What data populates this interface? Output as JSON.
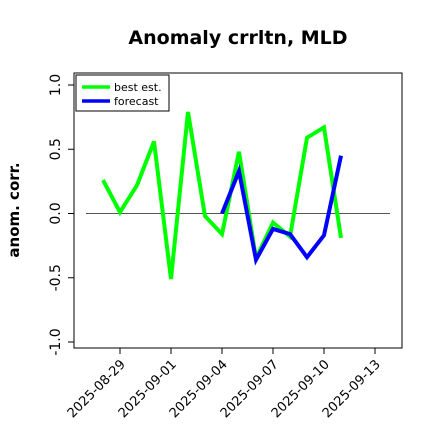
{
  "chart_data": {
    "type": "line",
    "title": "Anomaly crrltn, MLD",
    "ylabel": "anom. corr.",
    "xlabel": "",
    "ylim": [
      -1.0,
      1.0
    ],
    "yticks": [
      -1.0,
      -0.5,
      0.0,
      0.5,
      1.0
    ],
    "ytick_labels": [
      "-1.0",
      "-0.5",
      "0.0",
      "0.5",
      "1.0"
    ],
    "x_ticks": [
      "2025-08-29",
      "2025-09-01",
      "2025-09-04",
      "2025-09-07",
      "2025-09-10",
      "2025-09-13"
    ],
    "highlight_tick": "2025-09-04",
    "highlight_color": "#228b22",
    "zero_line": true,
    "legend": {
      "position": "top-left",
      "entries": [
        "best est.",
        "forecast"
      ]
    },
    "series": [
      {
        "name": "best est.",
        "color": "#00ff00",
        "x": [
          "2025-08-28",
          "2025-08-29",
          "2025-08-30",
          "2025-08-31",
          "2025-09-01",
          "2025-09-02",
          "2025-09-03",
          "2025-09-04",
          "2025-09-05",
          "2025-09-06",
          "2025-09-07",
          "2025-09-08",
          "2025-09-09",
          "2025-09-10",
          "2025-09-11"
        ],
        "values": [
          0.26,
          0.01,
          0.22,
          0.56,
          -0.51,
          0.79,
          -0.02,
          -0.16,
          0.48,
          -0.35,
          -0.07,
          -0.18,
          0.59,
          0.67,
          -0.19
        ]
      },
      {
        "name": "forecast",
        "color": "#0000ff",
        "x": [
          "2025-09-04",
          "2025-09-05",
          "2025-09-06",
          "2025-09-07",
          "2025-09-08",
          "2025-09-09",
          "2025-09-10",
          "2025-09-11"
        ],
        "values": [
          0.0,
          0.33,
          -0.36,
          -0.12,
          -0.16,
          -0.34,
          -0.17,
          0.45
        ]
      }
    ]
  }
}
